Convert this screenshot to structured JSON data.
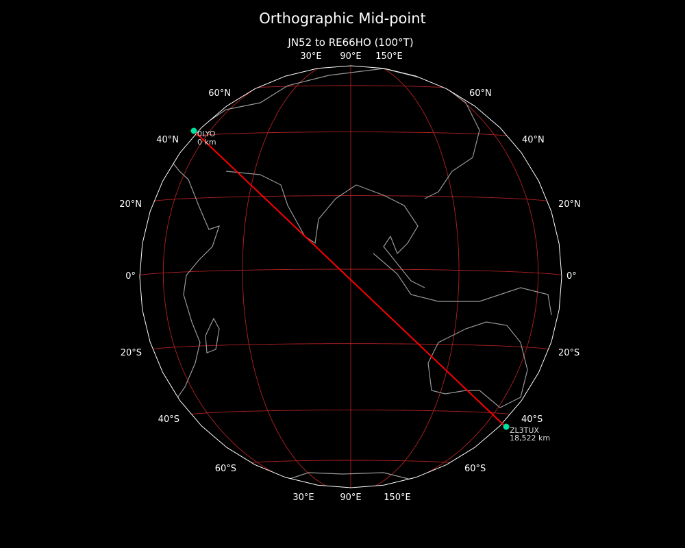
{
  "title": "Orthographic Mid-point",
  "subtitle": "JN52 to RE66HO (100°T)",
  "projection": {
    "type": "orthographic",
    "center_lon": 90,
    "center_lat": -2
  },
  "colors": {
    "background": "#000000",
    "graticule": "#b22222",
    "coast": "#999999",
    "path": "#ff0000",
    "station": "#00e0a0",
    "outline": "#ffffff"
  },
  "graticule": {
    "lon_step": 30,
    "lat_step": 20
  },
  "labels": {
    "top_lon": [
      "30°E",
      "90°E",
      "150°E"
    ],
    "bottom_lon": [
      "30°E",
      "90°E",
      "150°E"
    ],
    "left_lat": [
      "60°N",
      "40°N",
      "20°N",
      "0°",
      "20°S",
      "40°S",
      "60°S"
    ],
    "right_lat": [
      "60°N",
      "40°N",
      "20°N",
      "0°",
      "20°S",
      "40°S",
      "60°S"
    ]
  },
  "start": {
    "name": "0LYO",
    "distance": "0 km"
  },
  "end": {
    "name": "ZL3TUX",
    "distance": "18,522 km"
  }
}
